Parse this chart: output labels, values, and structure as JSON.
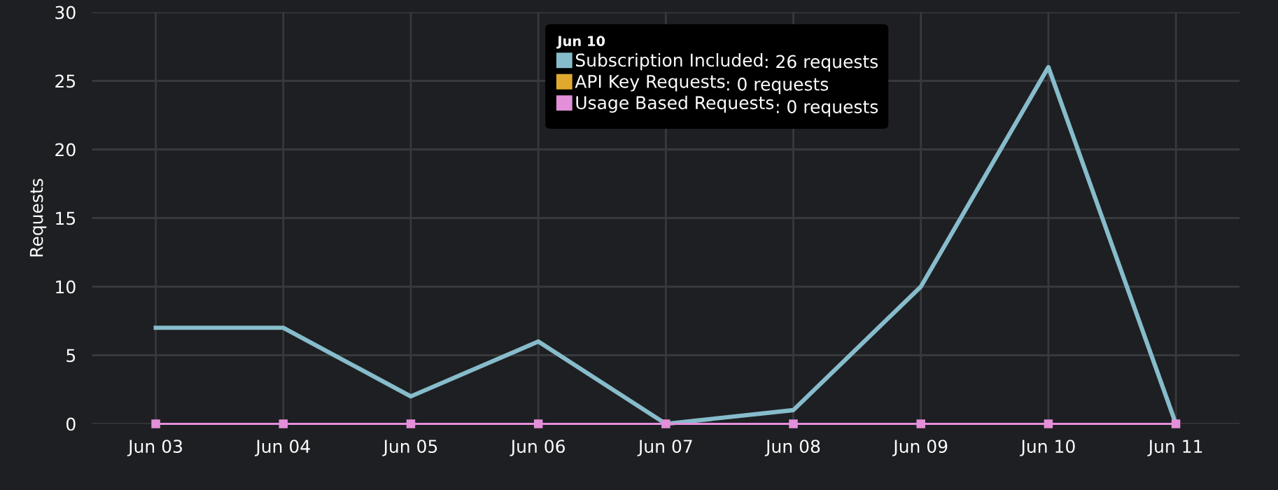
{
  "chart_data": {
    "type": "line",
    "ylabel": "Requests",
    "categories": [
      "Jun 03",
      "Jun 04",
      "Jun 05",
      "Jun 06",
      "Jun 07",
      "Jun 08",
      "Jun 09",
      "Jun 10",
      "Jun 11"
    ],
    "series": [
      {
        "name": "Subscription Included",
        "color": "#86bccb",
        "marker": "none",
        "values": [
          7,
          7,
          2,
          6,
          0,
          1,
          10,
          26,
          0
        ]
      },
      {
        "name": "API Key Requests",
        "color": "#e0a92e",
        "marker": "none",
        "values": [
          null,
          null,
          null,
          null,
          null,
          null,
          null,
          null,
          null
        ]
      },
      {
        "name": "Usage Based Requests",
        "color": "#e38fd9",
        "marker": "square",
        "values": [
          0,
          0,
          0,
          0,
          0,
          0,
          0,
          0,
          0
        ]
      }
    ],
    "legend_title": "Jun 10",
    "annotations": [
      ": 26 requests",
      ": 0 requests",
      ": 0 requests"
    ],
    "ylim": [
      0,
      30
    ],
    "yticks": [
      0,
      5,
      10,
      15,
      20,
      25,
      30
    ],
    "grid": true,
    "legend": "top"
  }
}
